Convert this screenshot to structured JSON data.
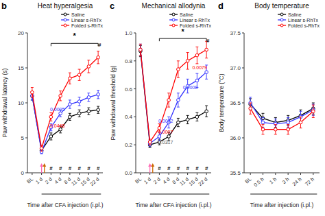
{
  "chart_data": [
    {
      "type": "line",
      "title": "Heat hyperalgesia",
      "xlabel": "Time after CFA injection (i.pl.)",
      "ylabel": "Paw withdrawal latency (s)",
      "categories": [
        "BL",
        "1 d",
        "2 d",
        "4 d",
        "8 d",
        "11 d",
        "15 d",
        "22 d"
      ],
      "ylim": [
        0,
        20
      ],
      "yticks": [
        0,
        5,
        10,
        15,
        20
      ],
      "grid": false,
      "legend": "upper right",
      "series": [
        {
          "name": "Saline",
          "color": "#000000",
          "marker": "circle",
          "values": [
            11.0,
            3.2,
            5.2,
            6.2,
            8.0,
            8.5,
            8.8,
            9.0
          ],
          "errors": [
            0.6,
            0.3,
            0.5,
            0.5,
            0.5,
            0.5,
            0.5,
            0.5
          ]
        },
        {
          "name": "Linear s-RhTx",
          "color": "#3333FF",
          "marker": "circle",
          "values": [
            11.0,
            3.0,
            6.5,
            8.5,
            9.8,
            10.2,
            10.8,
            11.2
          ],
          "errors": [
            0.6,
            0.3,
            0.5,
            0.5,
            0.6,
            0.6,
            0.6,
            0.6
          ]
        },
        {
          "name": "Folded s-RhTx",
          "color": "#FF0000",
          "marker": "circle",
          "values": [
            11.5,
            3.5,
            8.0,
            11.0,
            13.5,
            14.0,
            15.2,
            16.5
          ],
          "errors": [
            0.7,
            0.4,
            0.6,
            0.7,
            0.8,
            0.8,
            0.9,
            0.9
          ]
        }
      ],
      "annotations": [
        {
          "type": "panel_label",
          "text": "b"
        },
        {
          "type": "text",
          "text": "0.0005",
          "x": 1.9,
          "y": 8.8,
          "color": "#3333FF"
        },
        {
          "type": "text",
          "text": "0.0448",
          "x": 1.9,
          "y": 6.5,
          "color": "#FF0000"
        },
        {
          "type": "text",
          "text": "#",
          "x": 2,
          "y": 0.4
        },
        {
          "type": "text",
          "text": "#",
          "x": 3,
          "y": 0.4
        },
        {
          "type": "text",
          "text": "#",
          "x": 4,
          "y": 0.4
        },
        {
          "type": "text",
          "text": "#",
          "x": 5,
          "y": 0.4
        },
        {
          "type": "text",
          "text": "#",
          "x": 6,
          "y": 0.4
        },
        {
          "type": "text",
          "text": "#",
          "x": 7,
          "y": 0.4
        },
        {
          "type": "bracket",
          "x1": 2,
          "x2": 7,
          "y": 18.5
        },
        {
          "type": "text",
          "text": "*",
          "x": 4.5,
          "y": 19.2
        },
        {
          "type": "text",
          "text": "#",
          "x": 7.15,
          "y": 18.0
        },
        {
          "type": "arrow",
          "x": 1,
          "color": "#FF69B4"
        },
        {
          "type": "arrow",
          "x": 1.3,
          "color": "#CC6600"
        },
        {
          "type": "period",
          "x1": 1.0,
          "x2": 7.3
        }
      ]
    },
    {
      "type": "line",
      "title": "Mechanical allodynia",
      "xlabel": "Time after CFA injection (i.pl.)",
      "ylabel": "Paw withdrawal threshold (g)",
      "categories": [
        "BL",
        "1 d",
        "2 d",
        "4 d",
        "8 d",
        "11 d",
        "15 d",
        "22 d"
      ],
      "ylim": [
        0.0,
        1.0
      ],
      "yticks": [
        {
          "value": 0.0,
          "label": "0.0"
        },
        0.2,
        0.4,
        0.6,
        0.8,
        {
          "value": 1.0,
          "label": "1.0"
        }
      ],
      "grid": false,
      "legend": "upper right",
      "series": [
        {
          "name": "Saline",
          "color": "#000000",
          "marker": "circle",
          "values": [
            0.87,
            0.2,
            0.22,
            0.26,
            0.36,
            0.38,
            0.4,
            0.44
          ],
          "errors": [
            0.04,
            0.02,
            0.02,
            0.03,
            0.03,
            0.03,
            0.03,
            0.04
          ]
        },
        {
          "name": "Linear s-RhTx",
          "color": "#3333FF",
          "marker": "circle",
          "values": [
            0.88,
            0.21,
            0.26,
            0.36,
            0.52,
            0.62,
            0.66,
            0.72
          ],
          "errors": [
            0.04,
            0.02,
            0.03,
            0.04,
            0.05,
            0.05,
            0.05,
            0.05
          ]
        },
        {
          "name": "Folded s-RhTx",
          "color": "#FF0000",
          "marker": "circle",
          "values": [
            0.88,
            0.22,
            0.32,
            0.52,
            0.74,
            0.8,
            0.84,
            0.88
          ],
          "errors": [
            0.04,
            0.02,
            0.03,
            0.05,
            0.06,
            0.06,
            0.06,
            0.06
          ]
        }
      ],
      "annotations": [
        {
          "type": "panel_label",
          "text": "c"
        },
        {
          "type": "text",
          "text": "0.0002",
          "x": 1.9,
          "y": 0.36,
          "color": "#3333FF"
        },
        {
          "type": "text",
          "text": "0.0007",
          "x": 1.9,
          "y": 0.28,
          "color": "#FF0000"
        },
        {
          "type": "text",
          "text": "0.0317",
          "x": 1.9,
          "y": 0.205,
          "color": "#555555"
        },
        {
          "type": "text",
          "text": "0.0008",
          "x": 4.5,
          "y": 0.6,
          "color": "#3333FF"
        },
        {
          "type": "text",
          "text": "0.0079",
          "x": 5.5,
          "y": 0.74,
          "color": "#FF0000"
        },
        {
          "type": "text",
          "text": "#",
          "x": 2,
          "y": 0.02
        },
        {
          "type": "text",
          "text": "#",
          "x": 3,
          "y": 0.02
        },
        {
          "type": "text",
          "text": "#",
          "x": 4,
          "y": 0.02
        },
        {
          "type": "text",
          "text": "#",
          "x": 5,
          "y": 0.02
        },
        {
          "type": "text",
          "text": "#",
          "x": 6,
          "y": 0.02
        },
        {
          "type": "text",
          "text": "#",
          "x": 7,
          "y": 0.02
        },
        {
          "type": "bracket",
          "x1": 2,
          "x2": 7,
          "y": 0.96
        },
        {
          "type": "text",
          "text": "*",
          "x": 4.5,
          "y": 0.99
        },
        {
          "type": "text",
          "text": "#",
          "x": 7.15,
          "y": 0.93
        },
        {
          "type": "arrow",
          "x": 1,
          "color": "#FF69B4"
        },
        {
          "type": "arrow",
          "x": 1.3,
          "color": "#CC6600"
        },
        {
          "type": "period",
          "x1": 1.0,
          "x2": 7.3
        }
      ]
    },
    {
      "type": "line",
      "title": "Body temperature",
      "xlabel": "Time after injection (i.pl.)",
      "ylabel": "Body temperature (°C)",
      "categories": [
        "BL",
        "0.5 h",
        "1 h",
        "3 h",
        "24 h",
        "72 h"
      ],
      "ylim": [
        35.5,
        37.5
      ],
      "yticks": [
        35.5,
        {
          "value": 36.0,
          "label": "36.0"
        },
        36.5,
        {
          "value": 37.0,
          "label": "37.0"
        },
        37.5
      ],
      "grid": false,
      "legend": "upper right",
      "series": [
        {
          "name": "Saline",
          "color": "#000000",
          "marker": "circle",
          "values": [
            36.48,
            36.28,
            36.22,
            36.25,
            36.32,
            36.42
          ],
          "errors": [
            0.08,
            0.07,
            0.07,
            0.07,
            0.08,
            0.08
          ]
        },
        {
          "name": "Linear s-RhTx",
          "color": "#3333FF",
          "marker": "circle",
          "values": [
            36.5,
            36.22,
            36.2,
            36.22,
            36.3,
            36.4
          ],
          "errors": [
            0.08,
            0.07,
            0.07,
            0.07,
            0.08,
            0.08
          ]
        },
        {
          "name": "Folded s-RhTx",
          "color": "#FF0000",
          "marker": "circle",
          "values": [
            36.42,
            36.12,
            36.12,
            36.12,
            36.22,
            36.38
          ],
          "errors": [
            0.08,
            0.07,
            0.07,
            0.07,
            0.08,
            0.09
          ]
        }
      ],
      "annotations": [
        {
          "type": "panel_label",
          "text": "d"
        },
        {
          "type": "period",
          "x1": 0.0,
          "x2": 5.3
        }
      ]
    }
  ]
}
